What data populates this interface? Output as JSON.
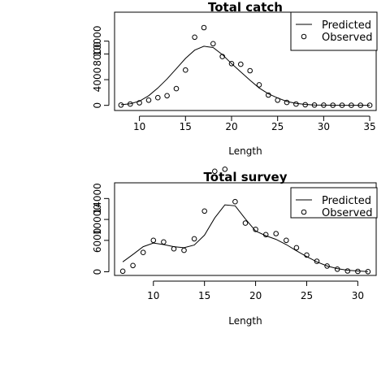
{
  "chart_data": [
    {
      "type": "line",
      "title": "Total catch",
      "xlabel": "Length",
      "ylabel": "",
      "xlim": [
        7.3,
        35.7
      ],
      "ylim": [
        -800,
        14500
      ],
      "x_ticks": [
        10,
        15,
        20,
        25,
        30,
        35
      ],
      "y_ticks": [
        0,
        4000,
        8000,
        10000
      ],
      "grid": false,
      "legend_position": "top-right",
      "series": [
        {
          "name": "Predicted",
          "style": "line",
          "x": [
            8,
            9,
            10,
            11,
            12,
            13,
            14,
            15,
            16,
            17,
            18,
            19,
            20,
            21,
            22,
            23,
            24,
            25,
            26,
            27,
            28,
            29,
            30,
            31,
            32,
            33,
            34,
            35
          ],
          "values": [
            100,
            250,
            650,
            1500,
            2700,
            4100,
            5700,
            7300,
            8600,
            9200,
            9000,
            7900,
            6500,
            5200,
            3900,
            2700,
            1800,
            1150,
            600,
            300,
            150,
            60,
            30,
            20,
            10,
            5,
            5,
            5
          ]
        },
        {
          "name": "Observed",
          "style": "points",
          "x": [
            8,
            9,
            10,
            11,
            12,
            13,
            14,
            15,
            16,
            17,
            18,
            19,
            20,
            21,
            22,
            23,
            24,
            25,
            26,
            27,
            28,
            29,
            30,
            31,
            32,
            33,
            34,
            35
          ],
          "values": [
            50,
            200,
            400,
            800,
            1200,
            1500,
            2600,
            5500,
            10600,
            12100,
            9600,
            7600,
            6500,
            6400,
            5400,
            3200,
            1600,
            800,
            450,
            200,
            100,
            50,
            30,
            20,
            10,
            5,
            5,
            5
          ]
        }
      ]
    },
    {
      "type": "line",
      "title": "Total survey",
      "xlabel": "Length",
      "ylabel": "",
      "xlim": [
        6.2,
        31.8
      ],
      "ylim": [
        -700,
        17000
      ],
      "x_ticks": [
        10,
        15,
        20,
        25,
        30
      ],
      "y_ticks": [
        0,
        6000,
        10000,
        14000
      ],
      "grid": false,
      "legend_position": "top-right",
      "series": [
        {
          "name": "Predicted",
          "style": "line",
          "x": [
            7,
            8,
            9,
            10,
            11,
            12,
            13,
            14,
            15,
            16,
            17,
            18,
            19,
            20,
            21,
            22,
            23,
            24,
            25,
            26,
            27,
            28,
            29,
            30,
            31
          ],
          "values": [
            1900,
            3300,
            4800,
            5500,
            5200,
            4800,
            4600,
            5100,
            7000,
            10300,
            12800,
            12600,
            10100,
            7800,
            6900,
            6200,
            5200,
            4000,
            2900,
            1900,
            1100,
            600,
            300,
            150,
            50
          ]
        },
        {
          "name": "Observed",
          "style": "points",
          "x": [
            7,
            8,
            9,
            10,
            11,
            12,
            13,
            14,
            15,
            16,
            17,
            18,
            19,
            20,
            21,
            22,
            23,
            24,
            25,
            26,
            27,
            28,
            29,
            30,
            31
          ],
          "values": [
            100,
            1200,
            3700,
            6000,
            5700,
            4400,
            4100,
            6300,
            11600,
            19200,
            19600,
            13400,
            9300,
            8100,
            7100,
            7300,
            6000,
            4600,
            3200,
            2000,
            1100,
            500,
            150,
            80,
            30
          ]
        }
      ]
    }
  ]
}
